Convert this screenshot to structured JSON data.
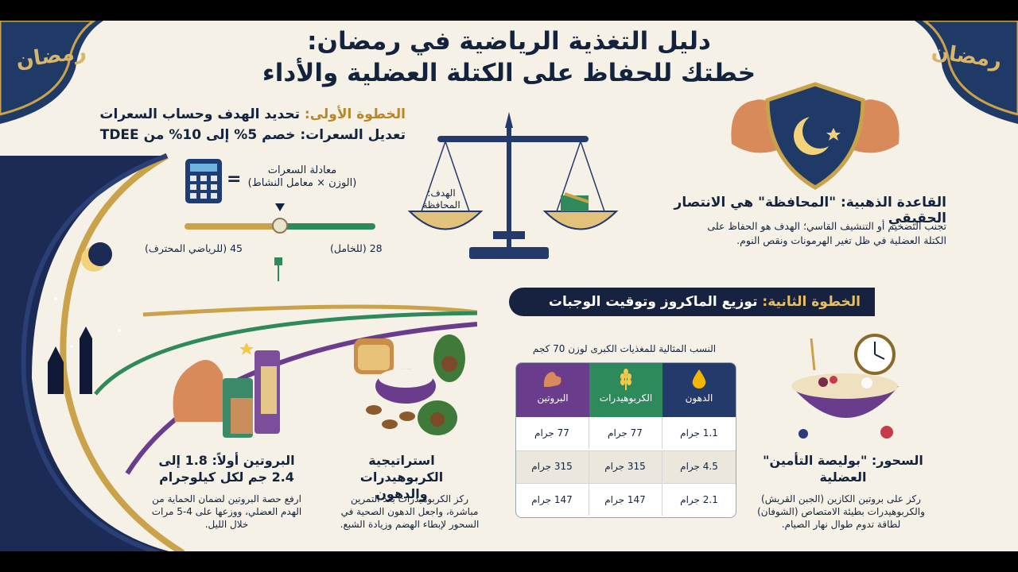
{
  "title": {
    "line1": "دليل التغذية الرياضية في رمضان:",
    "line2": "خطتك للحفاظ على الكتلة العضلية والأداء"
  },
  "step1": {
    "line1_label": "الخطوة الأولى:",
    "line1_text": "تحديد الهدف وحساب السعرات",
    "line2": "تعديل السعرات: خصم 5% إلى 10% من TDEE",
    "formula_title": "معادلة السعرات",
    "formula_body": "(الوزن × معامل النشاط)",
    "slider_right": "28 (للخامل)",
    "slider_left": "45 (للرياضي المحترف)",
    "slider_level": 0.5
  },
  "scale": {
    "left_pan_label": "الهدف: المحافظة"
  },
  "golden_rule": {
    "heading": "القاعدة الذهبية: \"المحافظة\" هي الانتصار الحقيقي",
    "body": "تجنب التضخيم أو التنشيف القاسي؛ الهدف هو الحفاظ على الكتلة العضلية في ظل تغير الهرمونات ونقص النوم."
  },
  "step2": {
    "label": "الخطوة الثانية:",
    "text": "توزيع الماكروز وتوقيت الوجبات"
  },
  "protein": {
    "heading": "البروتين أولاً: 1.8 إلى 2.4 جم لكل كيلوجرام",
    "body": "ارفع حصة البروتين لضمان الحماية من الهدم العضلي، ووزعها على 4-5 مرات خلال الليل."
  },
  "carbs_fats": {
    "heading": "استراتيجية الكربوهيدرات والدهون",
    "body": "ركز الكربوهيدرات بعد التمرين مباشرة، واجعل الدهون الصحية في السحور لإبطاء الهضم وزيادة الشبع."
  },
  "table": {
    "caption": "النسب المثالية للمغذيات الكبرى لوزن 70 كجم",
    "headers": [
      "الدهون",
      "الكربوهيدرات",
      "البروتين"
    ],
    "header_colors": [
      "#243a6b",
      "#2e8a5a",
      "#6a3d8c"
    ],
    "rows": [
      [
        "1.1 جرام",
        "77 جرام",
        "77 جرام"
      ],
      [
        "4.5 جرام",
        "315 جرام",
        "315 جرام"
      ],
      [
        "2.1 جرام",
        "147 جرام",
        "147 جرام"
      ]
    ]
  },
  "suhoor": {
    "heading": "السحور: \"بوليصة التأمين\" العضلية",
    "body": "ركز على بروتين الكازين (الجبن القريش) والكربوهيدرات بطيئة الامتصاص (الشوفان) لطاقة تدوم طوال نهار الصيام."
  },
  "decor": {
    "corner_calligraphy_left": "رمضان",
    "corner_calligraphy_right": "رمضان"
  },
  "colors": {
    "navy": "#14233d",
    "gold": "#c9a24a",
    "green": "#2e8a5a",
    "purple": "#6a3d8c",
    "background": "#f6f1e6"
  }
}
